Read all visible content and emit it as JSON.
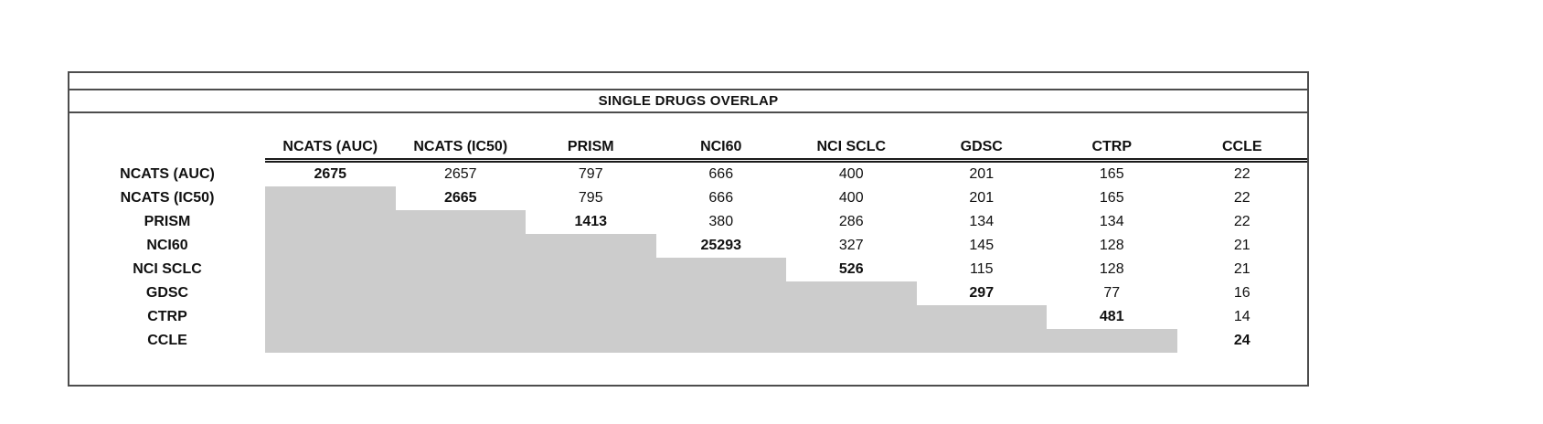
{
  "title_band": {
    "title": "SINGLE DRUGS OVERLAP"
  },
  "colors": {
    "frame_border": "#4d4d4d",
    "header_rule": "#1a1a1a",
    "lower_triangle_shade": "#cccccc",
    "text": "#111111",
    "background": "#ffffff"
  },
  "chart_data": {
    "type": "table",
    "title": "SINGLE DRUGS OVERLAP",
    "columns": [
      "NCATS (AUC)",
      "NCATS (IC50)",
      "PRISM",
      "NCI60",
      "NCI SCLC",
      "GDSC",
      "CTRP",
      "CCLE"
    ],
    "rows": [
      "NCATS (AUC)",
      "NCATS (IC50)",
      "PRISM",
      "NCI60",
      "NCI SCLC",
      "GDSC",
      "CTRP",
      "CCLE"
    ],
    "matrix": [
      [
        "2675",
        "2657",
        "797",
        "666",
        "400",
        "201",
        "165",
        "22"
      ],
      [
        null,
        "2665",
        "795",
        "666",
        "400",
        "201",
        "165",
        "22"
      ],
      [
        null,
        null,
        "1413",
        "380",
        "286",
        "134",
        "134",
        "22"
      ],
      [
        null,
        null,
        null,
        "25293",
        "327",
        "145",
        "128",
        "21"
      ],
      [
        null,
        null,
        null,
        null,
        "526",
        "115",
        "128",
        "21"
      ],
      [
        null,
        null,
        null,
        null,
        null,
        "297",
        "77",
        "16"
      ],
      [
        null,
        null,
        null,
        null,
        null,
        null,
        "481",
        "14"
      ],
      [
        null,
        null,
        null,
        null,
        null,
        null,
        null,
        "24"
      ]
    ],
    "diagonal_bold": true,
    "lower_triangle_shaded": true,
    "layout_hints": {
      "header_rule_style": "double",
      "shading": "stair-step lower-left triangle",
      "grid_lines": "none inside body"
    }
  }
}
